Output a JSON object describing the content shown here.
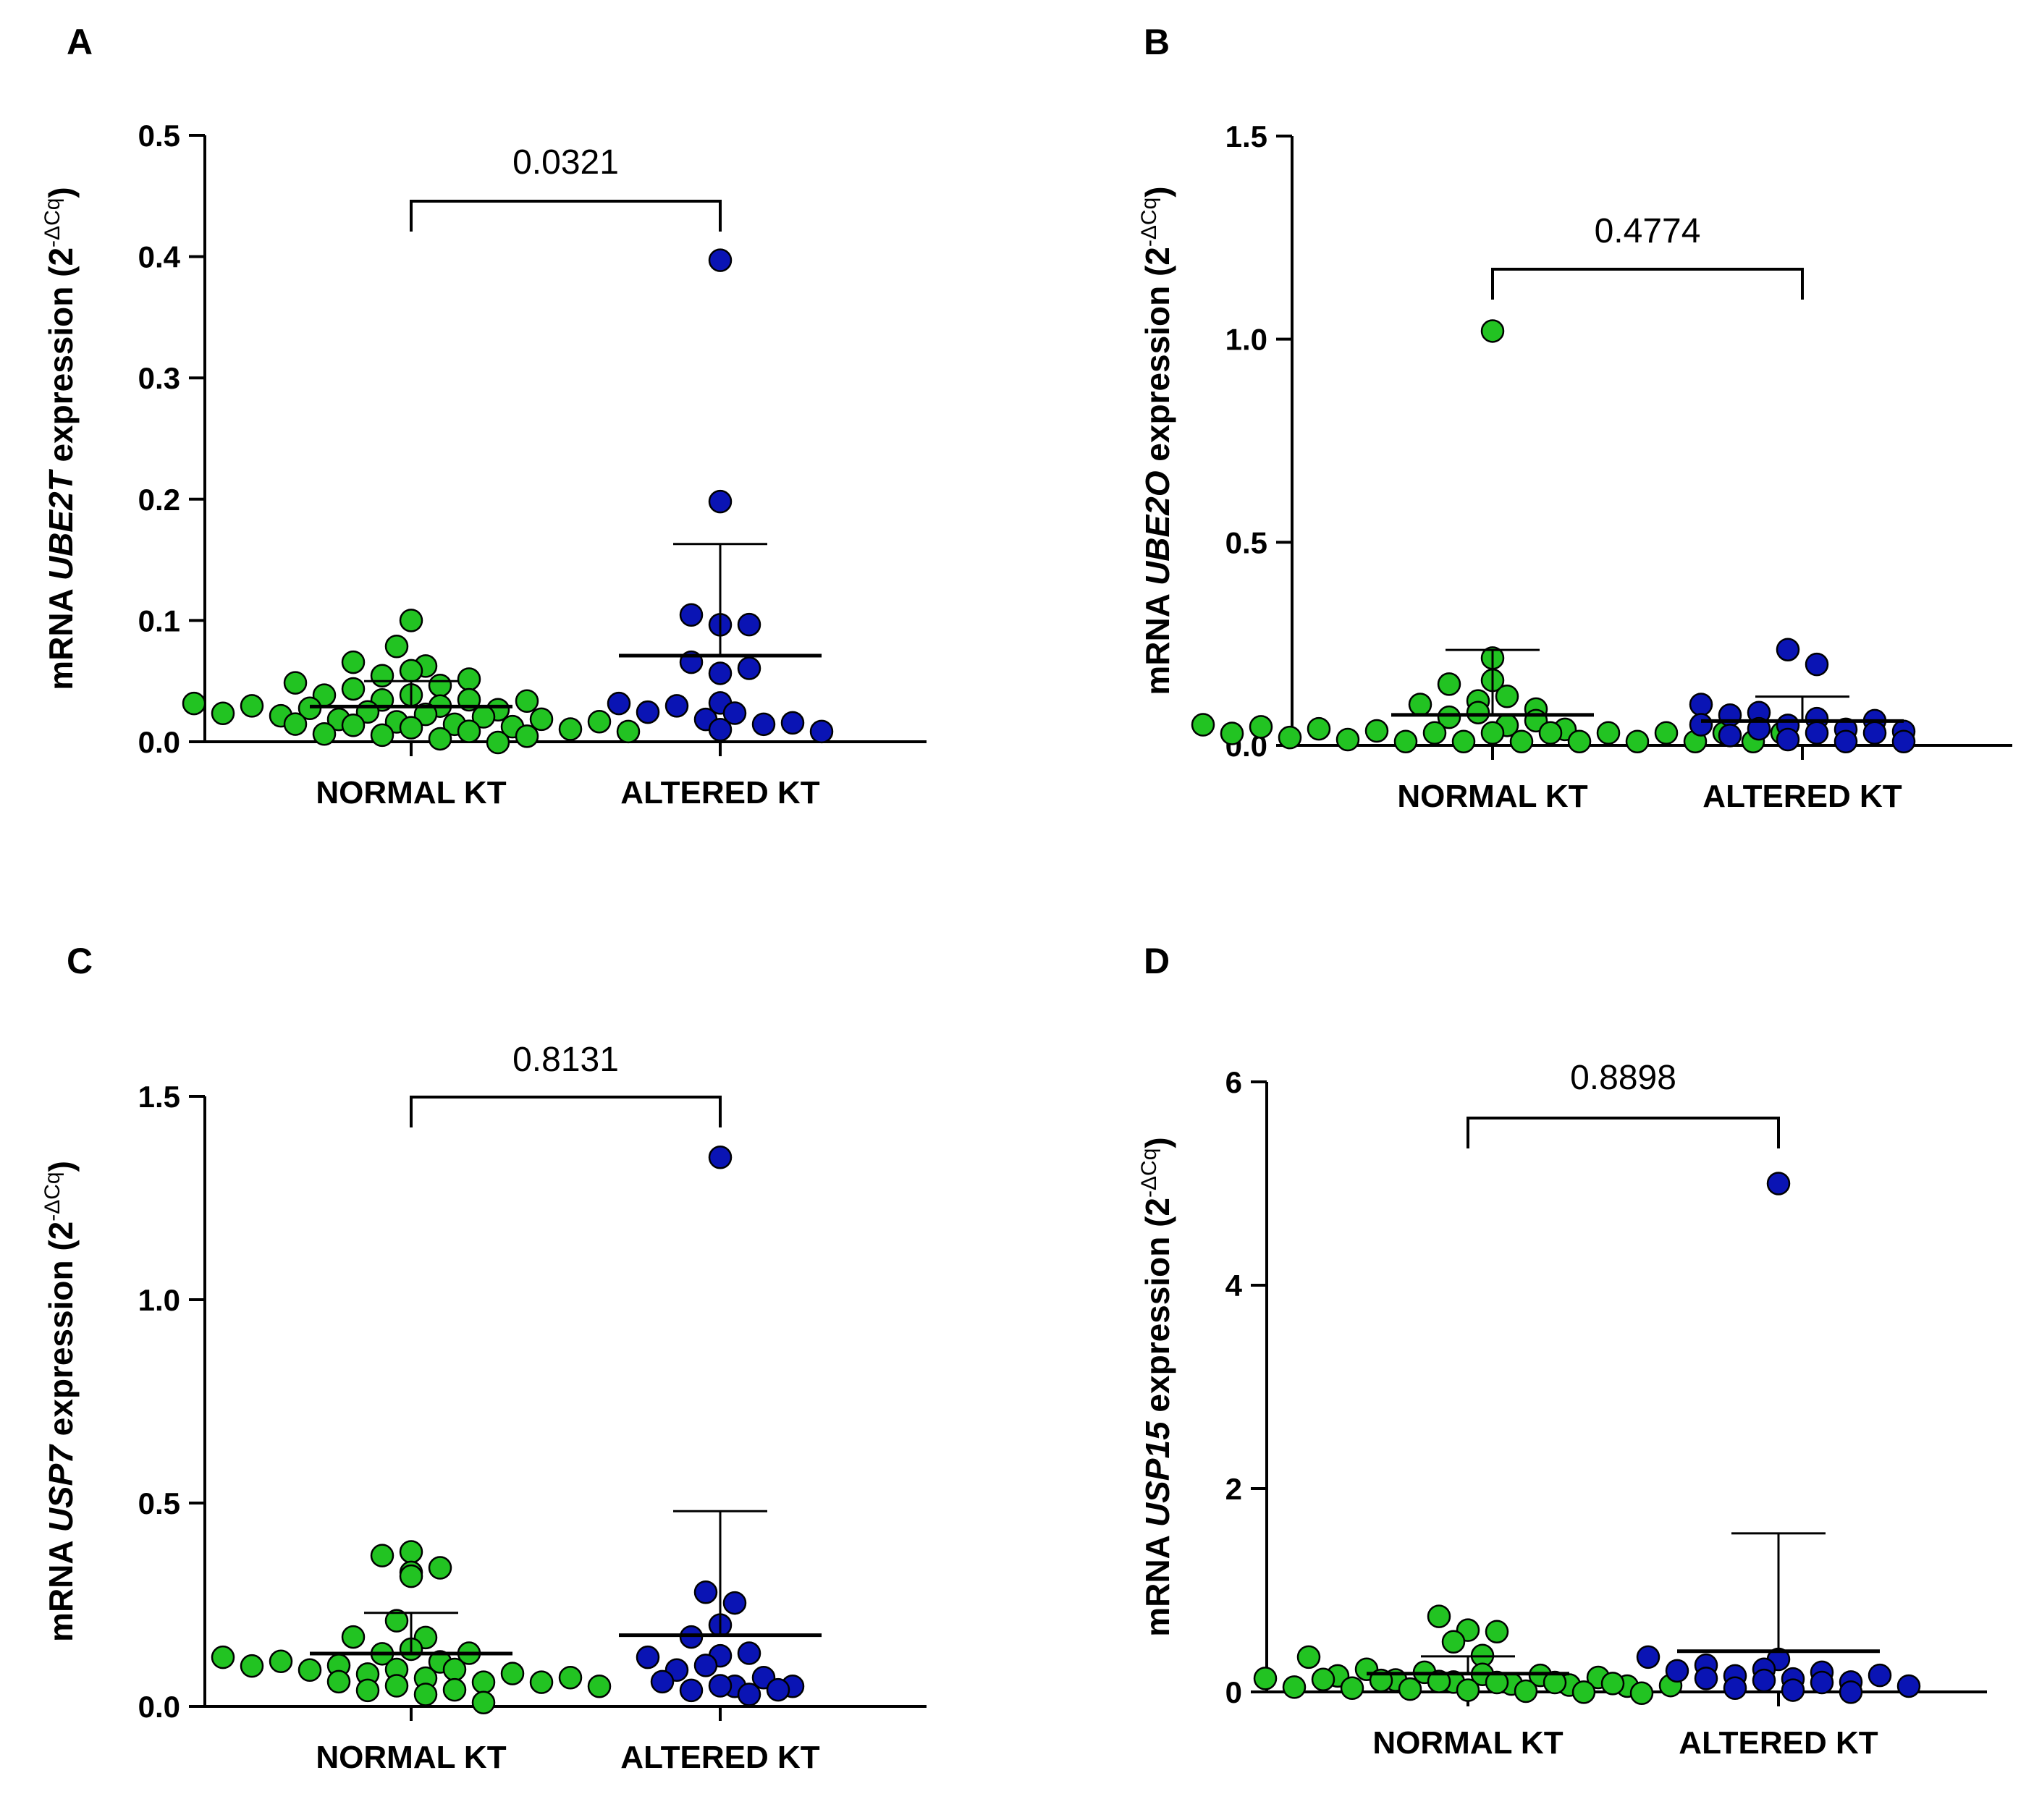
{
  "chart_data": [
    {
      "type": "scatter",
      "panel_label": "A",
      "ylabel": {
        "prefix": "mRNA ",
        "gene": "UBE2T",
        "suffix": " expression (2",
        "superscript": "-ΔCq",
        "close": ")"
      },
      "ylim": [
        0,
        0.5
      ],
      "yticks": [
        0.0,
        0.1,
        0.2,
        0.3,
        0.4,
        0.5
      ],
      "ytick_labels": [
        "0.0",
        "0.1",
        "0.2",
        "0.3",
        "0.4",
        "0.5"
      ],
      "categories": [
        "NORMAL KT",
        "ALTERED KT"
      ],
      "p_value": "0.0321",
      "series": [
        {
          "name": "NORMAL KT",
          "color": "#22c322",
          "values": [
            0.1,
            0.075,
            0.066,
            0.062,
            0.058,
            0.055,
            0.05,
            0.048,
            0.045,
            0.042,
            0.04,
            0.038,
            0.035,
            0.033,
            0.031,
            0.03,
            0.03,
            0.028,
            0.027,
            0.026,
            0.025,
            0.024,
            0.022,
            0.021,
            0.02,
            0.019,
            0.018,
            0.017,
            0.016,
            0.015,
            0.014,
            0.013,
            0.012,
            0.011,
            0.01,
            0.01,
            0.009,
            0.008,
            0.006,
            0.005,
            0.003,
            0.001
          ],
          "mean": 0.029,
          "sd": 0.021
        },
        {
          "name": "ALTERED KT",
          "color": "#0a14b4",
          "values": [
            0.397,
            0.198,
            0.101,
            0.1,
            0.093,
            0.062,
            0.06,
            0.057,
            0.032,
            0.028,
            0.028,
            0.026,
            0.022,
            0.02,
            0.018,
            0.012,
            0.012,
            0.01
          ],
          "mean": 0.071,
          "sd": 0.092
        }
      ]
    },
    {
      "type": "scatter",
      "panel_label": "B",
      "ylabel": {
        "prefix": "mRNA ",
        "gene": "UBE2O",
        "suffix": " expression (2",
        "superscript": "-ΔCq",
        "close": ")"
      },
      "ylim": [
        0,
        1.5
      ],
      "yticks": [
        0.0,
        0.5,
        1.0,
        1.5
      ],
      "ytick_labels": [
        "0.0",
        "0.5",
        "1.0",
        "1.5"
      ],
      "categories": [
        "NORMAL KT",
        "ALTERED KT"
      ],
      "p_value": "0.4774",
      "series": [
        {
          "name": "NORMAL KT",
          "color": "#22c322",
          "values": [
            1.02,
            0.215,
            0.16,
            0.14,
            0.12,
            0.11,
            0.1,
            0.09,
            0.08,
            0.07,
            0.06,
            0.05,
            0.05,
            0.04,
            0.04,
            0.035,
            0.03,
            0.03,
            0.025,
            0.025,
            0.02,
            0.02,
            0.02,
            0.02,
            0.02,
            0.02,
            0.02,
            0.02,
            0.02,
            0.02,
            0.02,
            0.02,
            0.02,
            0.02
          ],
          "mean": 0.075,
          "sd": 0.16
        },
        {
          "name": "ALTERED KT",
          "color": "#0a14b4",
          "values": [
            0.225,
            0.21,
            0.09,
            0.085,
            0.07,
            0.06,
            0.055,
            0.05,
            0.05,
            0.045,
            0.04,
            0.035,
            0.03,
            0.025,
            0.02,
            0.02,
            0.02,
            0.02
          ],
          "mean": 0.06,
          "sd": 0.06
        }
      ]
    },
    {
      "type": "scatter",
      "panel_label": "C",
      "ylabel": {
        "prefix": "mRNA ",
        "gene": "USP7",
        "suffix": " expression (2",
        "superscript": "-ΔCq",
        "close": ")"
      },
      "ylim": [
        0,
        1.5
      ],
      "yticks": [
        0.0,
        0.5,
        1.0,
        1.5
      ],
      "ytick_labels": [
        "0.0",
        "0.5",
        "1.0",
        "1.5"
      ],
      "categories": [
        "NORMAL KT",
        "ALTERED KT"
      ],
      "p_value": "0.8131",
      "series": [
        {
          "name": "NORMAL KT",
          "color": "#22c322",
          "values": [
            0.38,
            0.36,
            0.34,
            0.33,
            0.32,
            0.2,
            0.18,
            0.16,
            0.14,
            0.13,
            0.12,
            0.12,
            0.11,
            0.11,
            0.1,
            0.1,
            0.09,
            0.09,
            0.08,
            0.08,
            0.08,
            0.07,
            0.07,
            0.07,
            0.06,
            0.06,
            0.05,
            0.05,
            0.04,
            0.04,
            0.03,
            0.02
          ],
          "mean": 0.13,
          "sd": 0.1
        },
        {
          "name": "ALTERED KT",
          "color": "#0a14b4",
          "values": [
            1.35,
            0.27,
            0.265,
            0.2,
            0.16,
            0.135,
            0.12,
            0.11,
            0.1,
            0.09,
            0.06,
            0.06,
            0.06,
            0.05,
            0.05,
            0.04,
            0.04,
            0.03
          ],
          "mean": 0.175,
          "sd": 0.305
        }
      ]
    },
    {
      "type": "scatter",
      "panel_label": "D",
      "ylabel": {
        "prefix": "mRNA ",
        "gene": "USP15",
        "suffix": " expression (2",
        "superscript": "-ΔCq",
        "close": ")"
      },
      "ylim": [
        0,
        6
      ],
      "yticks": [
        0,
        2,
        4,
        6
      ],
      "ytick_labels": [
        "0",
        "2",
        "4",
        "6"
      ],
      "categories": [
        "NORMAL KT",
        "ALTERED KT"
      ],
      "p_value": "0.8898",
      "series": [
        {
          "name": "NORMAL KT",
          "color": "#22c322",
          "values": [
            0.7,
            0.65,
            0.55,
            0.45,
            0.4,
            0.3,
            0.2,
            0.18,
            0.16,
            0.15,
            0.14,
            0.13,
            0.12,
            0.12,
            0.11,
            0.1,
            0.1,
            0.09,
            0.09,
            0.08,
            0.08,
            0.07,
            0.07,
            0.06,
            0.06,
            0.05,
            0.05,
            0.05,
            0.04,
            0.04,
            0.03,
            0.02
          ],
          "mean": 0.18,
          "sd": 0.17
        },
        {
          "name": "ALTERED KT",
          "color": "#0a14b4",
          "values": [
            5.0,
            0.32,
            0.3,
            0.25,
            0.22,
            0.2,
            0.18,
            0.17,
            0.15,
            0.14,
            0.12,
            0.1,
            0.09,
            0.08,
            0.07,
            0.06,
            0.05,
            0.04
          ],
          "mean": 0.4,
          "sd": 1.16
        }
      ]
    }
  ]
}
